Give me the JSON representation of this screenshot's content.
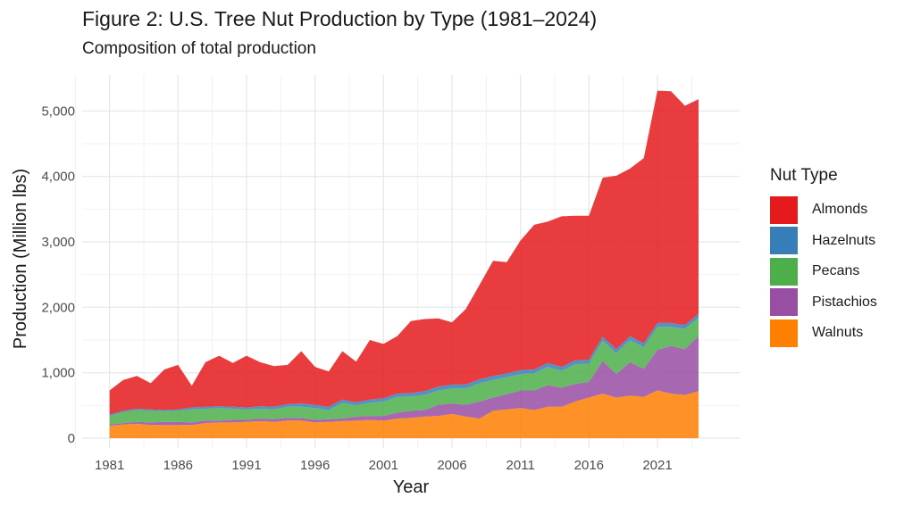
{
  "title": "Figure 2: U.S. Tree Nut Production by Type (1981–2024)",
  "subtitle": "Composition of total production",
  "legend": {
    "title": "Nut Type",
    "items": [
      {
        "label": "Almonds",
        "color": "#E41A1C"
      },
      {
        "label": "Hazelnuts",
        "color": "#377EB8"
      },
      {
        "label": "Pecans",
        "color": "#4DAF4A"
      },
      {
        "label": "Pistachios",
        "color": "#984EA3"
      },
      {
        "label": "Walnuts",
        "color": "#FF7F00"
      }
    ]
  },
  "chart_data": {
    "type": "area",
    "stacked": true,
    "x_label": "Year",
    "y_label": "Production (Million lbs)",
    "xlim": [
      1979,
      2027
    ],
    "ylim": [
      -150,
      5550
    ],
    "x_ticks": [
      1981,
      1986,
      1991,
      1996,
      2001,
      2006,
      2011,
      2016,
      2021
    ],
    "x_tick_labels": [
      "1981",
      "1986",
      "1991",
      "1996",
      "2001",
      "2006",
      "2011",
      "2016",
      "2021"
    ],
    "y_ticks": [
      0,
      1000,
      2000,
      3000,
      4000,
      5000
    ],
    "y_tick_labels": [
      "0",
      "1,000",
      "2,000",
      "3,000",
      "4,000",
      "5,000"
    ],
    "legend_position": "right",
    "grid": true,
    "x": [
      1981,
      1982,
      1983,
      1984,
      1985,
      1986,
      1987,
      1988,
      1989,
      1990,
      1991,
      1992,
      1993,
      1994,
      1995,
      1996,
      1997,
      1998,
      1999,
      2000,
      2001,
      2002,
      2003,
      2004,
      2005,
      2006,
      2007,
      2008,
      2009,
      2010,
      2011,
      2012,
      2013,
      2014,
      2015,
      2016,
      2017,
      2018,
      2019,
      2020,
      2021,
      2022,
      2023,
      2024
    ],
    "series": [
      {
        "name": "Walnuts",
        "color": "#FF7F00",
        "values": [
          190,
          210,
          220,
          200,
          200,
          200,
          200,
          230,
          240,
          240,
          250,
          260,
          250,
          270,
          270,
          240,
          250,
          260,
          270,
          280,
          270,
          300,
          310,
          330,
          340,
          370,
          330,
          300,
          420,
          440,
          460,
          430,
          480,
          480,
          560,
          620,
          680,
          620,
          650,
          630,
          730,
          680,
          660,
          720
        ]
      },
      {
        "name": "Pistachios",
        "color": "#984EA3",
        "values": [
          20,
          20,
          30,
          40,
          50,
          50,
          40,
          40,
          30,
          40,
          30,
          40,
          40,
          40,
          40,
          40,
          40,
          40,
          60,
          60,
          70,
          90,
          110,
          100,
          170,
          160,
          180,
          260,
          200,
          230,
          270,
          300,
          330,
          290,
          270,
          240,
          500,
          360,
          510,
          430,
          620,
          730,
          700,
          840
        ]
      },
      {
        "name": "Pecans",
        "color": "#4DAF4A",
        "values": [
          130,
          170,
          180,
          180,
          160,
          170,
          200,
          180,
          190,
          170,
          160,
          150,
          150,
          170,
          170,
          180,
          140,
          240,
          170,
          200,
          220,
          240,
          220,
          230,
          220,
          230,
          250,
          280,
          270,
          260,
          250,
          260,
          280,
          260,
          300,
          280,
          310,
          320,
          340,
          330,
          350,
          290,
          310,
          280
        ]
      },
      {
        "name": "Hazelnuts",
        "color": "#377EB8",
        "values": [
          20,
          20,
          20,
          20,
          20,
          20,
          30,
          30,
          30,
          30,
          30,
          40,
          40,
          40,
          50,
          50,
          50,
          50,
          50,
          50,
          50,
          50,
          50,
          60,
          60,
          60,
          60,
          60,
          60,
          60,
          60,
          60,
          60,
          60,
          60,
          60,
          60,
          60,
          60,
          60,
          60,
          60,
          60,
          60
        ]
      },
      {
        "name": "Almonds",
        "color": "#E41A1C",
        "values": [
          370,
          470,
          500,
          400,
          620,
          680,
          330,
          680,
          770,
          670,
          790,
          670,
          620,
          600,
          800,
          580,
          540,
          740,
          620,
          910,
          830,
          880,
          1100,
          1100,
          1040,
          950,
          1150,
          1440,
          1760,
          1700,
          1980,
          2210,
          2160,
          2300,
          2210,
          2200,
          2430,
          2650,
          2560,
          2830,
          3550,
          3540,
          3350,
          3280
        ]
      }
    ]
  }
}
